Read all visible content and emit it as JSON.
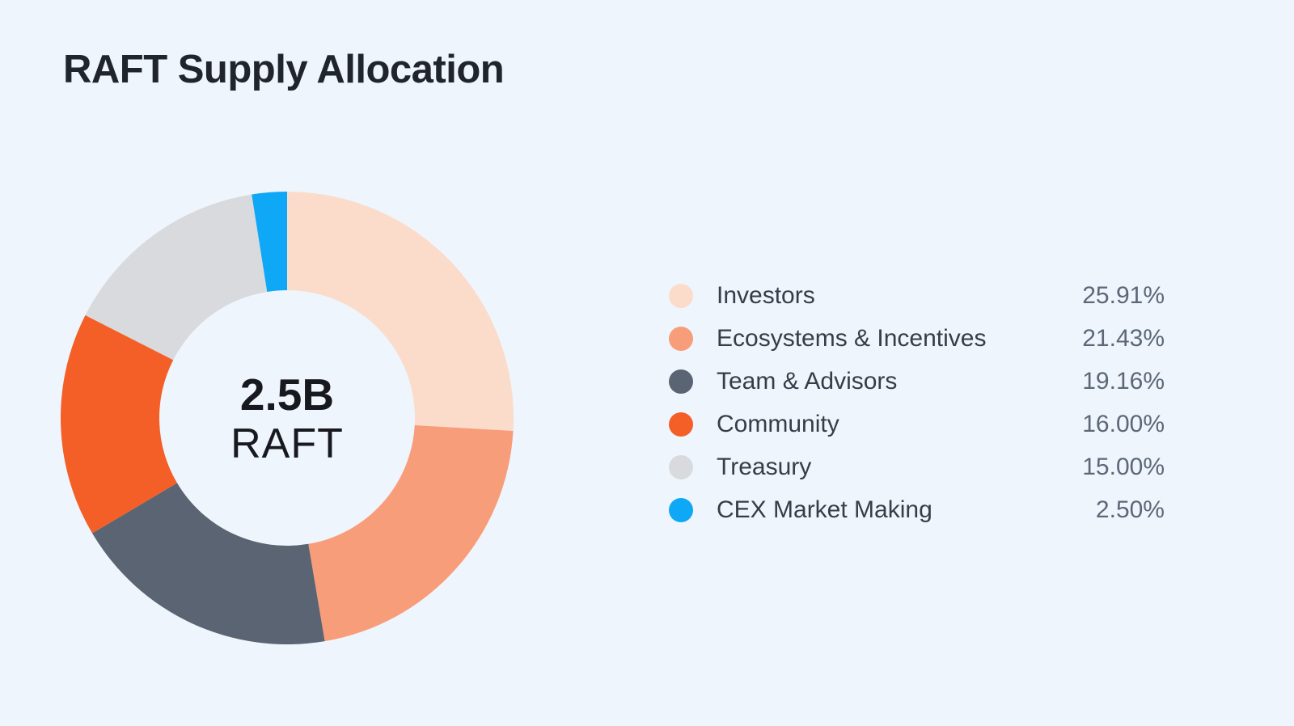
{
  "page": {
    "background": "#EFF5FC",
    "title_color": "#20242C",
    "label_color": "#363D49",
    "value_color": "#5C6877"
  },
  "chart_data": {
    "type": "pie",
    "variant": "donut",
    "title": "RAFT Supply Allocation",
    "center_label": {
      "value": "2.5B",
      "unit": "RAFT"
    },
    "categories": [
      "Investors",
      "Ecosystems & Incentives",
      "Team & Advisors",
      "Community",
      "Treasury",
      "CEX Market Making"
    ],
    "values": [
      25.91,
      21.43,
      19.16,
      16.0,
      15.0,
      2.5
    ],
    "display_values": [
      "25.91%",
      "21.43%",
      "19.16%",
      "16.00%",
      "15.00%",
      "2.50%"
    ],
    "colors": [
      "#FBDCCB",
      "#F89D7A",
      "#5A6472",
      "#F45F27",
      "#D9DADD",
      "#0FA8F6"
    ],
    "start_angle_deg": 0,
    "direction": "clockwise",
    "legend_position": "right",
    "grid": false
  }
}
